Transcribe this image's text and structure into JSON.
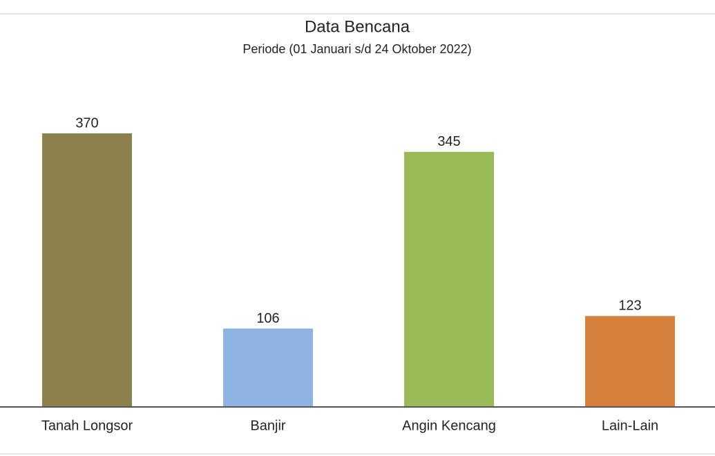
{
  "chart_data": {
    "type": "bar",
    "title": "Data Bencana",
    "subtitle": "Periode (01 Januari s/d 24 Oktober 2022)",
    "categories": [
      "Tanah Longsor",
      "Banjir",
      "Angin Kencang",
      "Lain-Lain"
    ],
    "values": [
      370,
      106,
      345,
      123
    ],
    "colors": [
      "#8b804e",
      "#8db3e2",
      "#9bbb59",
      "#d5803c"
    ]
  }
}
